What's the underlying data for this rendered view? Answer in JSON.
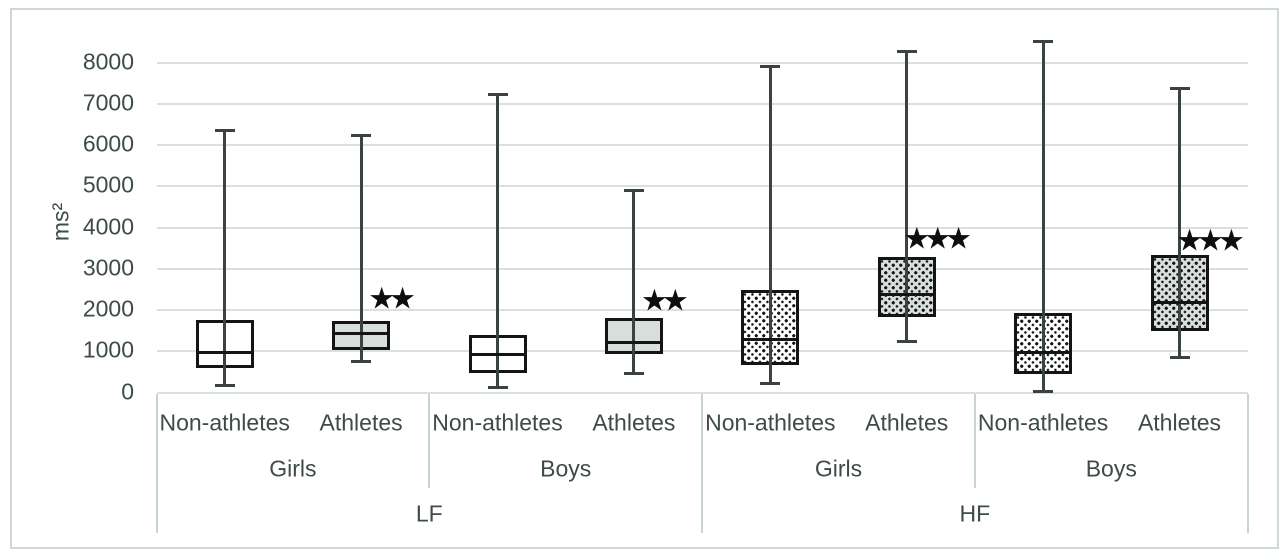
{
  "chart_data": {
    "type": "boxplot",
    "title": "",
    "ylabel": "ms²",
    "xlabel": "",
    "ylim": [
      0,
      8000
    ],
    "yticks": [
      0,
      1000,
      2000,
      3000,
      4000,
      5000,
      6000,
      7000,
      8000
    ],
    "grid": "horizontal",
    "legend": "none",
    "significance_marker": "★",
    "x_axis": {
      "level1": [
        "Non-athletes",
        "Athletes",
        "Non-athletes",
        "Athletes",
        "Non-athletes",
        "Athletes",
        "Non-athletes",
        "Athletes"
      ],
      "level2": [
        "Girls",
        "Boys",
        "Girls",
        "Boys"
      ],
      "level3": [
        "LF",
        "HF"
      ]
    },
    "series": [
      {
        "group": "LF",
        "sex": "Girls",
        "label": "Non-athletes",
        "min": 180,
        "q1": 630,
        "median": 980,
        "q3": 1720,
        "max": 6360,
        "fill": "white",
        "pattern": "none",
        "stars": 0,
        "stars_value": null
      },
      {
        "group": "LF",
        "sex": "Girls",
        "label": "Athletes",
        "min": 750,
        "q1": 1070,
        "median": 1440,
        "q3": 1690,
        "max": 6240,
        "fill": "gray",
        "pattern": "none",
        "stars": 2,
        "stars_value": 2240
      },
      {
        "group": "LF",
        "sex": "Boys",
        "label": "Non-athletes",
        "min": 130,
        "q1": 500,
        "median": 930,
        "q3": 1350,
        "max": 7230,
        "fill": "white",
        "pattern": "none",
        "stars": 0,
        "stars_value": null
      },
      {
        "group": "LF",
        "sex": "Boys",
        "label": "Athletes",
        "min": 460,
        "q1": 980,
        "median": 1220,
        "q3": 1760,
        "max": 4890,
        "fill": "gray",
        "pattern": "none",
        "stars": 2,
        "stars_value": 2190
      },
      {
        "group": "HF",
        "sex": "Girls",
        "label": "Non-athletes",
        "min": 210,
        "q1": 710,
        "median": 1280,
        "q3": 2450,
        "max": 7900,
        "fill": "white",
        "pattern": "dots",
        "stars": 0,
        "stars_value": null
      },
      {
        "group": "HF",
        "sex": "Girls",
        "label": "Athletes",
        "min": 1230,
        "q1": 1860,
        "median": 2380,
        "q3": 3250,
        "max": 8260,
        "fill": "gray",
        "pattern": "dots",
        "stars": 3,
        "stars_value": 3700
      },
      {
        "group": "HF",
        "sex": "Boys",
        "label": "Non-athletes",
        "min": 30,
        "q1": 490,
        "median": 980,
        "q3": 1900,
        "max": 8520,
        "fill": "white",
        "pattern": "dots",
        "stars": 0,
        "stars_value": null
      },
      {
        "group": "HF",
        "sex": "Boys",
        "label": "Athletes",
        "min": 860,
        "q1": 1530,
        "median": 2180,
        "q3": 3290,
        "max": 7360,
        "fill": "gray",
        "pattern": "dots",
        "stars": 3,
        "stars_value": 3650
      }
    ],
    "colors": {
      "background": "#ffffff",
      "figure_border": "#ccd9d6",
      "gridline": "#d9e0de",
      "axis_line": "#c7d4d1",
      "text": "#3e4b4b",
      "box_border": "#141414",
      "whisker": "#3b4242",
      "solid_fill": "#d8dedc",
      "white_fill": "#ffffff",
      "dot": "#161616",
      "star": "#0e0e0e"
    }
  }
}
